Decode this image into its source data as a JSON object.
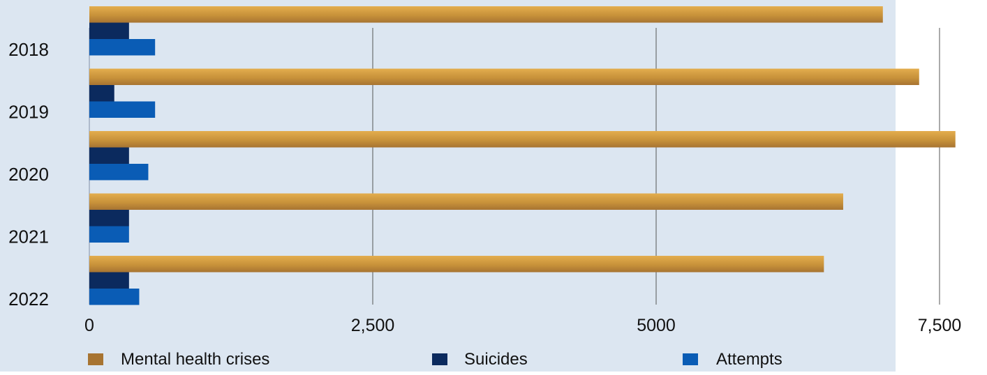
{
  "chart_data": {
    "type": "bar",
    "orientation": "horizontal",
    "categories": [
      "2018",
      "2019",
      "2020",
      "2021",
      "2022"
    ],
    "series": [
      {
        "name": "Mental health crises",
        "color": "#c8923a",
        "values": [
          7000,
          7320,
          7640,
          6650,
          6480
        ]
      },
      {
        "name": "Suicides",
        "color": "#0b2a5e",
        "values": [
          350,
          220,
          350,
          350,
          350
        ]
      },
      {
        "name": "Attempts",
        "color": "#0a5cb5",
        "values": [
          580,
          580,
          520,
          350,
          440
        ]
      }
    ],
    "x_ticks": [
      {
        "value": 0,
        "label": "0"
      },
      {
        "value": 2500,
        "label": "2,500"
      },
      {
        "value": 5000,
        "label": "5000"
      },
      {
        "value": 7500,
        "label": "7,500"
      }
    ],
    "xlim": [
      0,
      7500
    ],
    "grid": true,
    "legend_position": "bottom",
    "background": "#dce6f1"
  }
}
